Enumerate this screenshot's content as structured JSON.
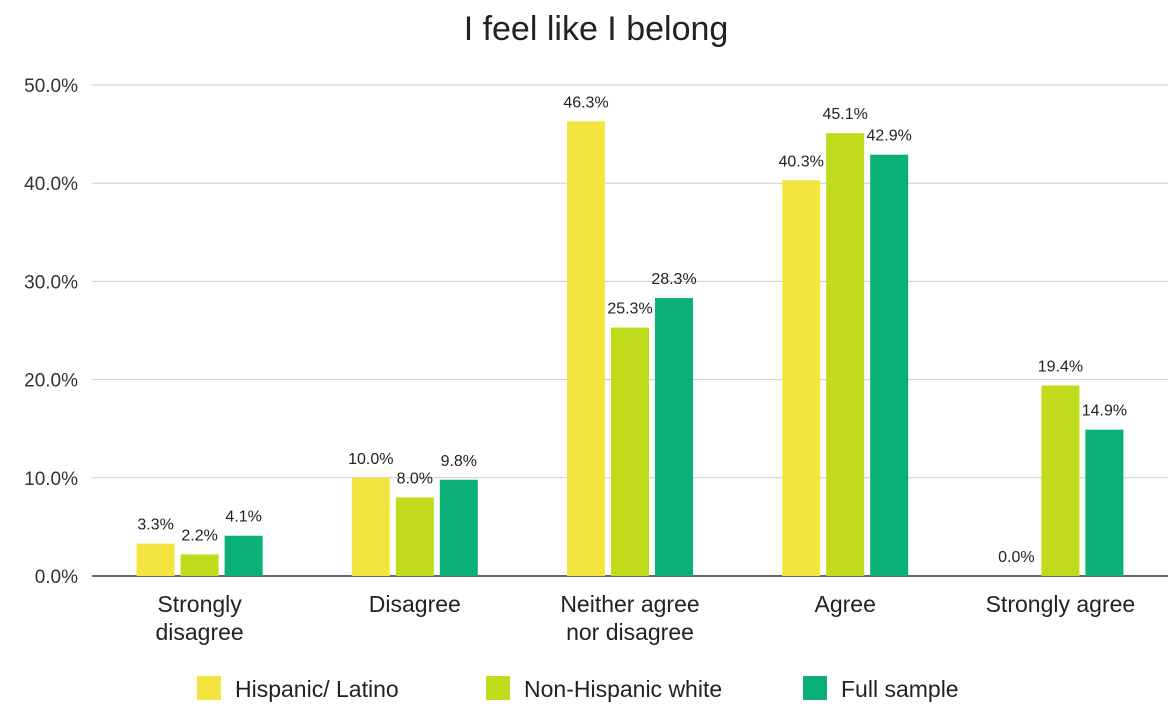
{
  "chart_data": {
    "type": "bar",
    "title": "I feel like I belong",
    "categories": [
      [
        "Strongly",
        "disagree"
      ],
      [
        "Disagree"
      ],
      [
        "Neither agree",
        "nor disagree"
      ],
      [
        "Agree"
      ],
      [
        "Strongly agree"
      ]
    ],
    "series": [
      {
        "name": "Hispanic/ Latino",
        "color": "#f3e440",
        "values": [
          3.3,
          10.0,
          46.3,
          40.3,
          0.0
        ],
        "labels": [
          "3.3%",
          "10.0%",
          "46.3%",
          "40.3%",
          "0.0%"
        ]
      },
      {
        "name": "Non-Hispanic white",
        "color": "#bfdb1c",
        "values": [
          2.2,
          8.0,
          25.3,
          45.1,
          19.4
        ],
        "labels": [
          "2.2%",
          "8.0%",
          "25.3%",
          "45.1%",
          "19.4%"
        ]
      },
      {
        "name": "Full sample",
        "color": "#0bb077",
        "values": [
          4.1,
          9.8,
          28.3,
          42.9,
          14.9
        ],
        "labels": [
          "4.1%",
          "9.8%",
          "28.3%",
          "42.9%",
          "14.9%"
        ]
      }
    ],
    "yticks": [
      0,
      10,
      20,
      30,
      40,
      50
    ],
    "ytick_labels": [
      "0.0%",
      "10.0%",
      "20.0%",
      "30.0%",
      "40.0%",
      "50.0%"
    ],
    "ylim": [
      0,
      50
    ],
    "grid": true,
    "legend_position": "bottom"
  }
}
